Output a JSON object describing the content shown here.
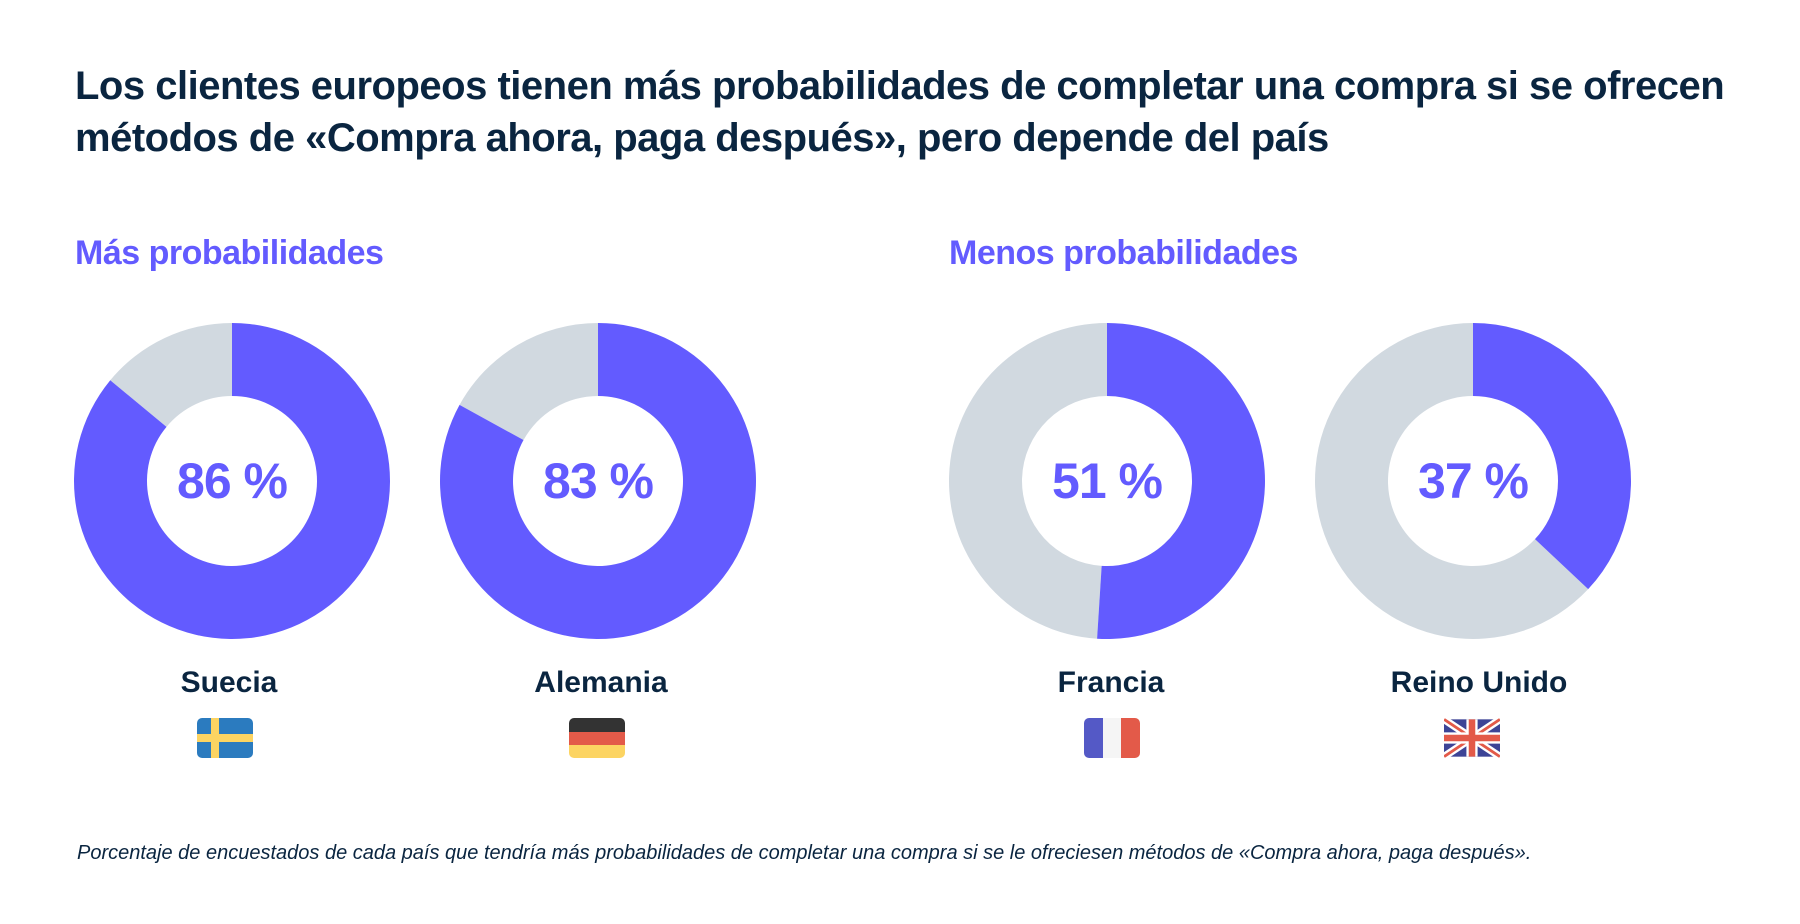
{
  "title": "Los clientes europeos tienen más probabilidades de completar una compra si se ofrecen métodos de «Compra ahora, paga después», pero depende del país",
  "groups": {
    "more": "Más probabilidades",
    "less": "Menos probabilidades"
  },
  "footnote": "Porcentaje de encuestados de cada país que tendría más probabilidades de completar una compra si se le ofreciesen métodos de «Compra ahora, paga después».",
  "colors": {
    "accent": "#635bff",
    "remainder": "#d1d9e0",
    "text": "#0a2540"
  },
  "chart_data": {
    "type": "pie",
    "subtype": "donut",
    "title": "Los clientes europeos tienen más probabilidades de completar una compra si se ofrecen métodos de «Compra ahora, paga después», pero depende del país",
    "unit": "%",
    "categories": [
      "Suecia",
      "Alemania",
      "Francia",
      "Reino Unido"
    ],
    "values": [
      86,
      83,
      51,
      37
    ],
    "labels": [
      "86 %",
      "83 %",
      "51 %",
      "37 %"
    ],
    "flags": [
      "sweden-flag",
      "germany-flag",
      "france-flag",
      "uk-flag"
    ]
  }
}
